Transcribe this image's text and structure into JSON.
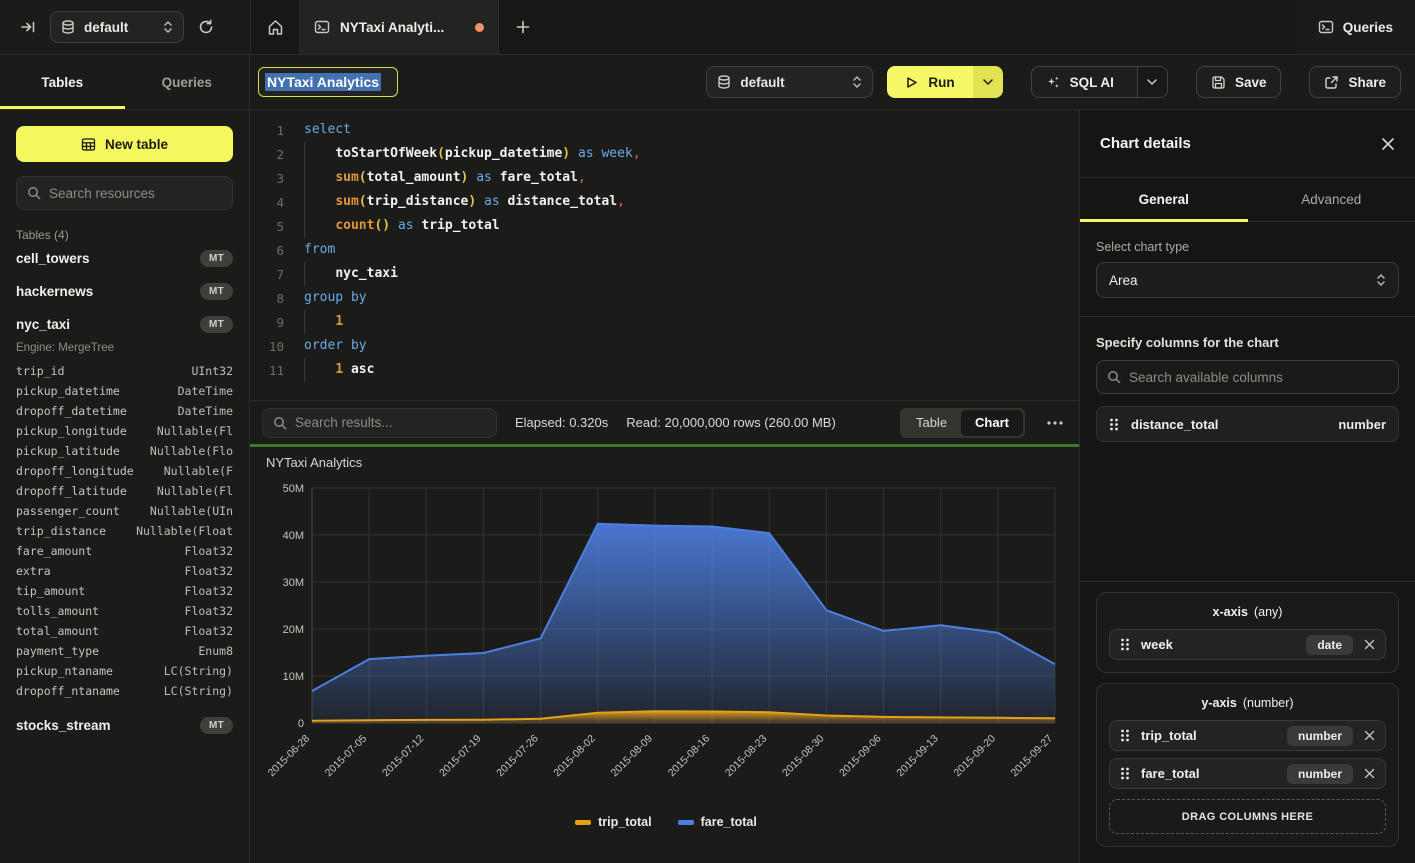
{
  "topbar": {
    "database": "default",
    "tab_title": "NYTaxi Analyti...",
    "queries_label": "Queries"
  },
  "sidebar": {
    "tabs": [
      "Tables",
      "Queries"
    ],
    "active_tab": "Tables",
    "new_table_label": "New table",
    "search_placeholder": "Search resources",
    "section_label": "Tables (4)",
    "tables": [
      {
        "name": "cell_towers",
        "badge": "MT"
      },
      {
        "name": "hackernews",
        "badge": "MT"
      },
      {
        "name": "nyc_taxi",
        "badge": "MT",
        "engine": "Engine: MergeTree",
        "columns": [
          [
            "trip_id",
            "UInt32"
          ],
          [
            "pickup_datetime",
            "DateTime"
          ],
          [
            "dropoff_datetime",
            "DateTime"
          ],
          [
            "pickup_longitude",
            "Nullable(Fl"
          ],
          [
            "pickup_latitude",
            "Nullable(Flo"
          ],
          [
            "dropoff_longitude",
            "Nullable(F"
          ],
          [
            "dropoff_latitude",
            "Nullable(Fl"
          ],
          [
            "passenger_count",
            "Nullable(UIn"
          ],
          [
            "trip_distance",
            "Nullable(Float"
          ],
          [
            "fare_amount",
            "Float32"
          ],
          [
            "extra",
            "Float32"
          ],
          [
            "tip_amount",
            "Float32"
          ],
          [
            "tolls_amount",
            "Float32"
          ],
          [
            "total_amount",
            "Float32"
          ],
          [
            "payment_type",
            "Enum8"
          ],
          [
            "pickup_ntaname",
            "LC(String)"
          ],
          [
            "dropoff_ntaname",
            "LC(String)"
          ]
        ]
      },
      {
        "name": "stocks_stream",
        "badge": "MT"
      }
    ]
  },
  "query_header": {
    "title_value": "NYTaxi Analytics",
    "database": "default",
    "run_label": "Run",
    "sql_ai_label": "SQL AI",
    "save_label": "Save",
    "share_label": "Share"
  },
  "editor": {
    "lines": [
      {
        "n": "1",
        "ind": false,
        "tokens": [
          [
            "select",
            "kw"
          ]
        ]
      },
      {
        "n": "2",
        "ind": true,
        "tokens": [
          [
            "    ",
            ""
          ],
          [
            "toStartOfWeek",
            "fnw"
          ],
          [
            "(",
            "par"
          ],
          [
            "pickup_datetime",
            "id"
          ],
          [
            ")",
            "par"
          ],
          [
            " ",
            ""
          ],
          [
            "as",
            "kw"
          ],
          [
            " ",
            ""
          ],
          [
            "week",
            "kw"
          ],
          [
            ",",
            "pun"
          ]
        ]
      },
      {
        "n": "3",
        "ind": true,
        "tokens": [
          [
            "    ",
            ""
          ],
          [
            "sum",
            "fn"
          ],
          [
            "(",
            "par"
          ],
          [
            "total_amount",
            "id"
          ],
          [
            ")",
            "par"
          ],
          [
            " ",
            ""
          ],
          [
            "as",
            "kw"
          ],
          [
            " ",
            ""
          ],
          [
            "fare_total",
            "id"
          ],
          [
            ",",
            "pun"
          ]
        ]
      },
      {
        "n": "4",
        "ind": true,
        "tokens": [
          [
            "    ",
            ""
          ],
          [
            "sum",
            "fn"
          ],
          [
            "(",
            "par"
          ],
          [
            "trip_distance",
            "id"
          ],
          [
            ")",
            "par"
          ],
          [
            " ",
            ""
          ],
          [
            "as",
            "kw"
          ],
          [
            " ",
            ""
          ],
          [
            "distance_total",
            "id"
          ],
          [
            ",",
            "pun"
          ]
        ]
      },
      {
        "n": "5",
        "ind": true,
        "tokens": [
          [
            "    ",
            ""
          ],
          [
            "count",
            "fn"
          ],
          [
            "()",
            "par"
          ],
          [
            " ",
            ""
          ],
          [
            "as",
            "kw"
          ],
          [
            " ",
            ""
          ],
          [
            "trip_total",
            "id"
          ]
        ]
      },
      {
        "n": "6",
        "ind": false,
        "tokens": [
          [
            "from",
            "kw"
          ]
        ]
      },
      {
        "n": "7",
        "ind": true,
        "tokens": [
          [
            "    ",
            ""
          ],
          [
            "nyc_taxi",
            "id"
          ]
        ]
      },
      {
        "n": "8",
        "ind": false,
        "tokens": [
          [
            "group by",
            "kw"
          ]
        ]
      },
      {
        "n": "9",
        "ind": true,
        "tokens": [
          [
            "    ",
            ""
          ],
          [
            "1",
            "num"
          ]
        ]
      },
      {
        "n": "10",
        "ind": false,
        "tokens": [
          [
            "order by",
            "kw"
          ]
        ]
      },
      {
        "n": "11",
        "ind": true,
        "tokens": [
          [
            "    ",
            ""
          ],
          [
            "1",
            "num"
          ],
          [
            " ",
            ""
          ],
          [
            "asc",
            "id"
          ]
        ]
      }
    ]
  },
  "results": {
    "search_placeholder": "Search results...",
    "elapsed": "Elapsed: 0.320s",
    "read": "Read: 20,000,000 rows (260.00 MB)",
    "view_toggle": [
      "Table",
      "Chart"
    ],
    "active_view": "Chart"
  },
  "chart_data": {
    "type": "area",
    "title": "NYTaxi Analytics",
    "categories": [
      "2015-06-28",
      "2015-07-05",
      "2015-07-12",
      "2015-07-19",
      "2015-07-26",
      "2015-08-02",
      "2015-08-09",
      "2015-08-16",
      "2015-08-23",
      "2015-08-30",
      "2015-09-06",
      "2015-09-13",
      "2015-09-20",
      "2015-09-27"
    ],
    "series": [
      {
        "name": "trip_total",
        "color": "#E8A018",
        "values": [
          0.5,
          0.6,
          0.65,
          0.7,
          0.9,
          2.2,
          2.5,
          2.45,
          2.3,
          1.6,
          1.3,
          1.2,
          1.1,
          1.0
        ]
      },
      {
        "name": "fare_total",
        "color": "#4E7EE0",
        "values": [
          6.8,
          13.6,
          14.3,
          14.9,
          18.0,
          42.4,
          42.0,
          41.8,
          40.4,
          24.0,
          19.6,
          20.8,
          19.2,
          12.5
        ]
      }
    ],
    "ylim": [
      0,
      50
    ],
    "y_ticks": [
      0,
      10,
      20,
      30,
      40,
      50
    ],
    "y_tick_labels": [
      "0",
      "10M",
      "20M",
      "30M",
      "40M",
      "50M"
    ],
    "xlabel": "",
    "ylabel": "",
    "grid": true,
    "legend_position": "bottom"
  },
  "chart_panel": {
    "title": "Chart details",
    "tabs": [
      "General",
      "Advanced"
    ],
    "active_tab": "General",
    "chart_type_label": "Select chart type",
    "chart_type_value": "Area",
    "columns_label": "Specify columns for the chart",
    "columns_search_placeholder": "Search available columns",
    "available_columns": [
      {
        "name": "distance_total",
        "type": "number"
      }
    ],
    "x_axis": {
      "label": "x-axis",
      "hint": "(any)",
      "items": [
        {
          "name": "week",
          "type": "date"
        }
      ]
    },
    "y_axis": {
      "label": "y-axis",
      "hint": "(number)",
      "items": [
        {
          "name": "trip_total",
          "type": "number"
        },
        {
          "name": "fare_total",
          "type": "number"
        }
      ]
    },
    "drop_zone_label": "DRAG COLUMNS HERE"
  },
  "colors": {
    "accent_yellow": "#F5F75E",
    "run_yellow": "#F7F868",
    "unsaved_dot_orange": "#EE9368",
    "success_green": "#3E7A2E",
    "selection_blue": "#4270B0",
    "series_trip_total": "#E8A018",
    "series_fare_total": "#4E7EE0"
  }
}
